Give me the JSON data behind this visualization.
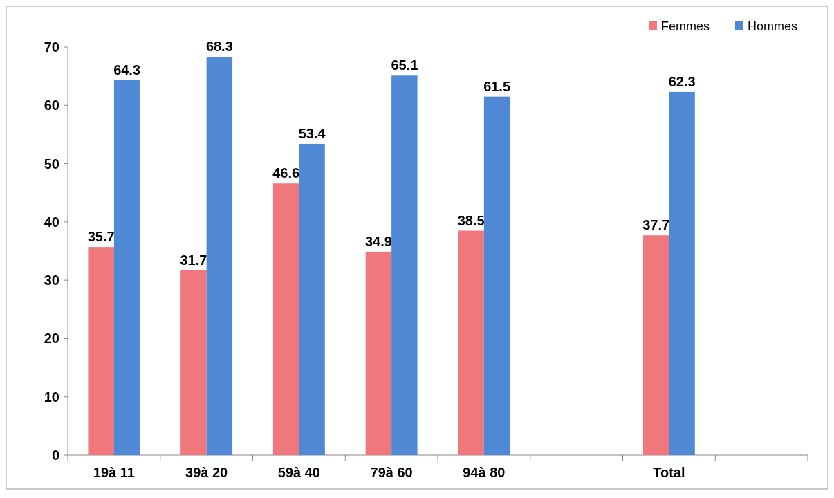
{
  "chart_data": {
    "type": "bar",
    "categories": [
      "19à  11",
      "39à  20",
      "59à  40",
      "79à  60",
      "94à  80",
      null,
      "Total",
      null
    ],
    "series": [
      {
        "name": "Femmes",
        "color": "#f0787c",
        "values": [
          35.7,
          31.7,
          46.6,
          34.9,
          38.5,
          null,
          37.7,
          null
        ]
      },
      {
        "name": "Hommes",
        "color": "#4f88d4",
        "values": [
          64.3,
          68.3,
          53.4,
          65.1,
          61.5,
          null,
          62.3,
          null
        ]
      }
    ],
    "ylim": [
      0,
      70
    ],
    "yticks": [
      0,
      10,
      20,
      30,
      40,
      50,
      60,
      70
    ],
    "data_labels": true,
    "legend": "top right"
  }
}
